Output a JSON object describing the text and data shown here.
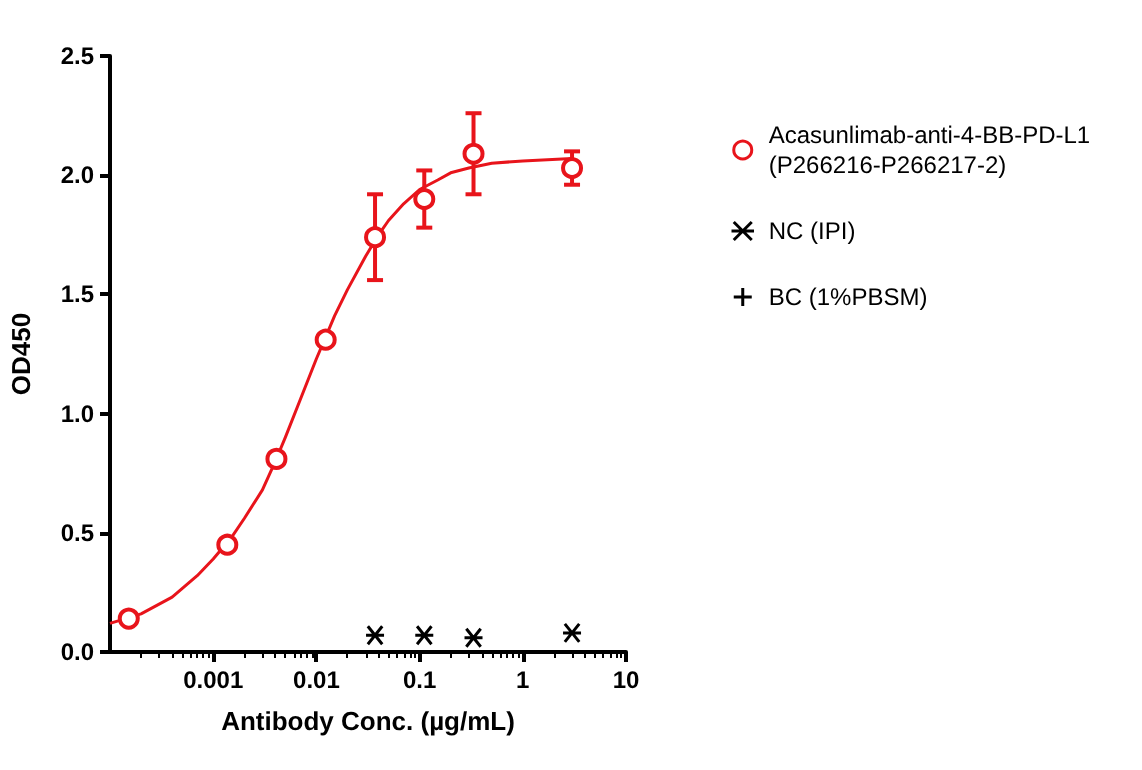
{
  "chart_data": {
    "type": "scatter",
    "xlabel": "Antibody Conc. (µg/mL)",
    "ylabel": "OD450",
    "log": "x",
    "xlim": [
      0.0001,
      10
    ],
    "xticks": [
      0.001,
      0.01,
      0.1,
      1,
      10
    ],
    "ylim": [
      0,
      2.5
    ],
    "yticks": [
      {
        "value": 0,
        "label": "0.0"
      },
      {
        "value": 0.5,
        "label": "0.5"
      },
      {
        "value": 1,
        "label": "1.0"
      },
      {
        "value": 1.5,
        "label": "1.5"
      },
      {
        "value": 2,
        "label": "2.0"
      },
      {
        "value": 2.5,
        "label": "2.5"
      }
    ],
    "grid": false,
    "legend": "right",
    "series": [
      {
        "name": "Acasunlimab-anti-4-BB-PD-L1 (P266216-P266217-2)",
        "marker": "circle",
        "color": "#e8141b",
        "x": [
          0.000152,
          0.00137,
          0.0041,
          0.0123,
          0.037,
          0.111,
          0.333,
          3
        ],
        "values": [
          0.14,
          0.45,
          0.81,
          1.31,
          1.74,
          1.9,
          2.09,
          2.03
        ],
        "errors": [
          null,
          null,
          null,
          null,
          0.18,
          0.12,
          0.17,
          0.07
        ]
      },
      {
        "name": "NC (IPI)",
        "marker": "cross",
        "color": "#000000",
        "x": [
          0.037,
          0.111,
          0.333,
          3
        ],
        "values": [
          0.07,
          0.07,
          0.06,
          0.08
        ]
      },
      {
        "name": "BC (1%PBSM)",
        "color": "#000000"
      },
      {
        "type": "line",
        "marker": "none",
        "line_style": "solid",
        "color": "#e8141b",
        "x": [
          0.0001,
          0.0002,
          0.0004,
          0.0007,
          0.001,
          0.0015,
          0.002,
          0.003,
          0.004,
          0.005,
          0.007,
          0.01,
          0.012,
          0.015,
          0.02,
          0.03,
          0.04,
          0.05,
          0.07,
          0.1,
          0.15,
          0.2,
          0.3,
          0.5,
          1,
          3
        ],
        "values": [
          0.12,
          0.16,
          0.23,
          0.32,
          0.39,
          0.48,
          0.56,
          0.68,
          0.8,
          0.9,
          1.06,
          1.23,
          1.31,
          1.41,
          1.52,
          1.66,
          1.75,
          1.81,
          1.88,
          1.94,
          1.98,
          2.01,
          2.03,
          2.05,
          2.06,
          2.07
        ]
      }
    ]
  }
}
